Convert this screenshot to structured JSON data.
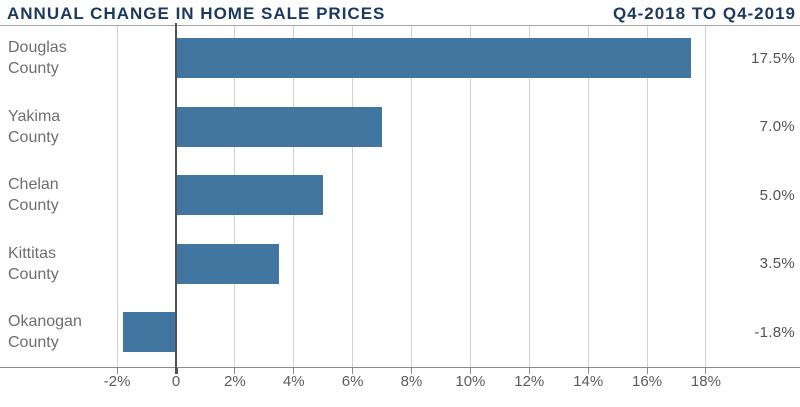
{
  "header": {
    "title": "ANNUAL CHANGE IN HOME SALE PRICES",
    "subtitle": "Q4-2018 TO Q4-2019"
  },
  "chart_data": {
    "type": "bar",
    "orientation": "horizontal",
    "title": "ANNUAL CHANGE IN HOME SALE PRICES",
    "subtitle": "Q4-2018 TO Q4-2019",
    "categories": [
      "Douglas County",
      "Yakima County",
      "Chelan County",
      "Kittitas County",
      "Okanogan County"
    ],
    "values": [
      17.5,
      7.0,
      5.0,
      3.5,
      -1.8
    ],
    "value_labels": [
      "17.5%",
      "7.0%",
      "5.0%",
      "3.5%",
      "-1.8%"
    ],
    "x_ticks": [
      -2,
      0,
      2,
      4,
      6,
      8,
      10,
      12,
      14,
      16,
      18
    ],
    "x_tick_labels": [
      "-2%",
      "0",
      "2%",
      "4%",
      "6%",
      "8%",
      "10%",
      "12%",
      "14%",
      "16%",
      "18%"
    ],
    "xlabel": "",
    "ylabel": "",
    "xlim": [
      -6,
      21.2
    ],
    "grid": "vertical-only",
    "legend": "none",
    "bar_color": "#4176A1",
    "title_color": "#1C3A60",
    "category_label_color": "#6D6E70",
    "value_label_color": "#515254",
    "gridline_color": "#D0D1D3",
    "zero_line_color": "#505155",
    "axis_line_color": "#8A8C8F"
  }
}
